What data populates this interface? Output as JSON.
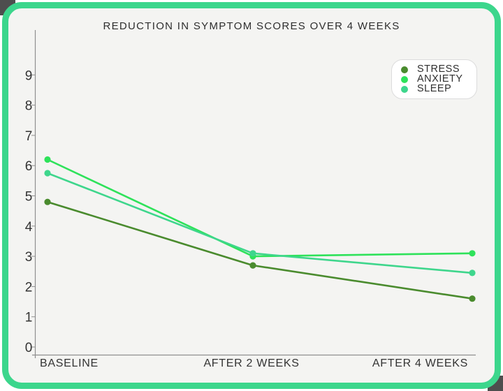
{
  "page": {
    "background": "#ffffff",
    "corner_artifact_color": "#4e4e4e"
  },
  "card": {
    "background": "#f4f4f2",
    "border_color": "#3cd68c"
  },
  "chart_data": {
    "type": "line",
    "title": "REDUCTION IN SYMPTOM SCORES OVER 4 WEEKS",
    "categories": [
      "BASELINE",
      "AFTER 2 WEEKS",
      "AFTER 4 WEEKS"
    ],
    "series": [
      {
        "name": "STRESS",
        "color": "#4a8b2e",
        "values": [
          4.8,
          2.7,
          1.6
        ]
      },
      {
        "name": "ANXIETY",
        "color": "#2ee25a",
        "values": [
          6.2,
          3.0,
          3.1
        ]
      },
      {
        "name": "SLEEP",
        "color": "#3ed68c",
        "values": [
          5.75,
          3.1,
          2.45
        ]
      }
    ],
    "xlabel": "",
    "ylabel": "",
    "y_ticks": [
      0,
      1,
      2,
      3,
      4,
      5,
      6,
      7,
      8,
      9
    ],
    "ylim": [
      0,
      9.8
    ],
    "grid": false,
    "legend_position": "top-right",
    "axis_color": "#8f8f8f",
    "text_color": "#333333",
    "marker": "circle",
    "line_width": 2.6,
    "marker_radius": 4.6
  }
}
